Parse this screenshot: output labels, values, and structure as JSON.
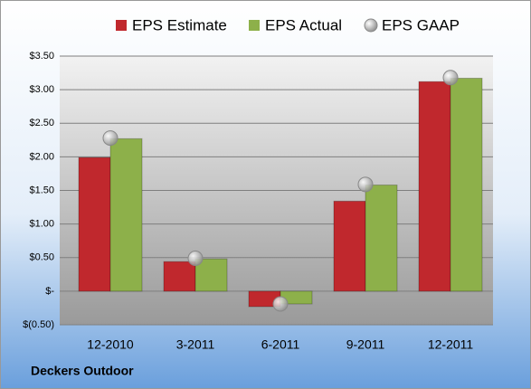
{
  "chart_data": {
    "type": "bar",
    "categories": [
      "12-2010",
      "3-2011",
      "6-2011",
      "9-2011",
      "12-2011"
    ],
    "series": [
      {
        "name": "EPS Estimate",
        "color": "#c0282d",
        "kind": "bar",
        "values": [
          1.99,
          0.44,
          -0.23,
          1.34,
          3.12
        ]
      },
      {
        "name": "EPS Actual",
        "color": "#8db04a",
        "kind": "bar",
        "values": [
          2.27,
          0.48,
          -0.19,
          1.58,
          3.17
        ]
      },
      {
        "name": "EPS GAAP",
        "color": "#b8b8b8",
        "kind": "point",
        "values": [
          2.28,
          0.49,
          -0.19,
          1.59,
          3.18
        ]
      }
    ],
    "ylim": [
      -0.5,
      3.5
    ],
    "yticks": [
      {
        "value": -0.5,
        "label": "$(0.50)"
      },
      {
        "value": 0,
        "label": "$-"
      },
      {
        "value": 0.5,
        "label": "$0.50"
      },
      {
        "value": 1,
        "label": "$1.00"
      },
      {
        "value": 1.5,
        "label": "$1.50"
      },
      {
        "value": 2,
        "label": "$2.00"
      },
      {
        "value": 2.5,
        "label": "$2.50"
      },
      {
        "value": 3,
        "label": "$3.00"
      },
      {
        "value": 3.5,
        "label": "$3.50"
      }
    ],
    "grid": true,
    "footer": "Deckers Outdoor"
  }
}
